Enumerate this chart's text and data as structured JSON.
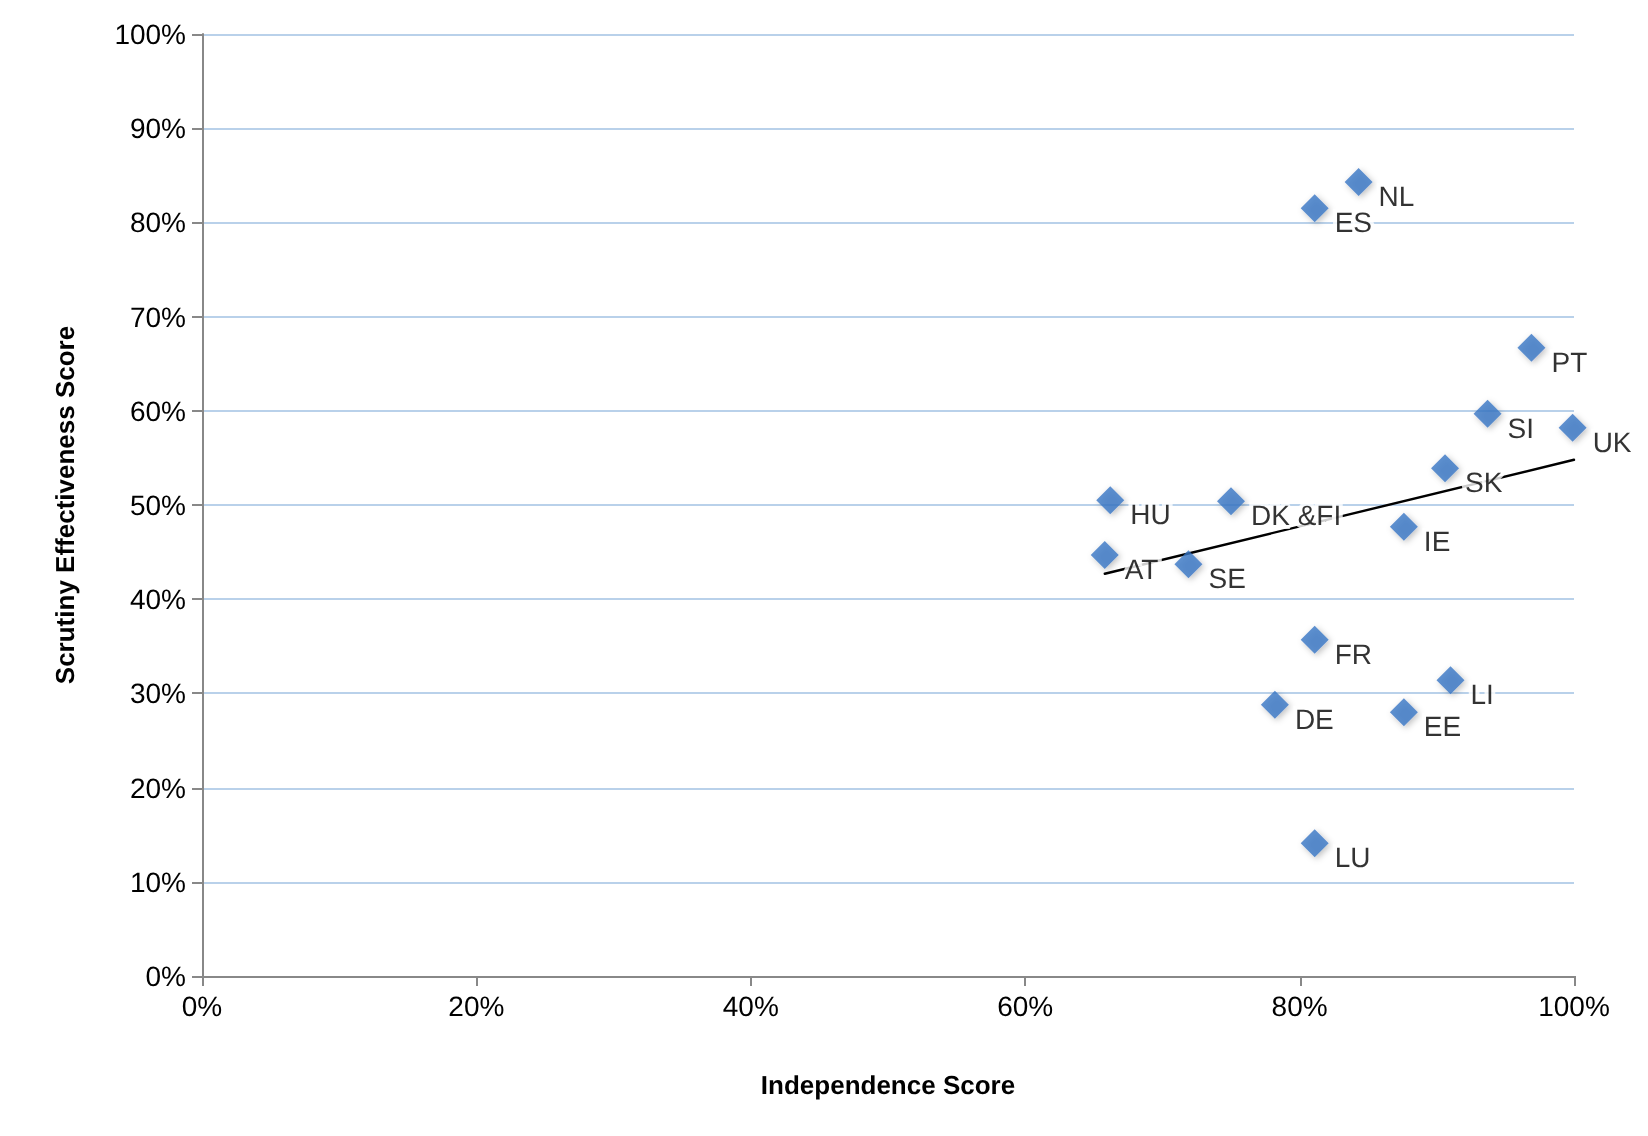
{
  "chart_data": {
    "type": "scatter",
    "xlabel": "Independence Score",
    "ylabel": "Scrutiny Effectiveness Score",
    "x": [
      84.3,
      81.1,
      96.9,
      93.7,
      99.9,
      90.6,
      66.2,
      75.0,
      65.8,
      71.9,
      87.6,
      81.1,
      91.0,
      78.2,
      87.6,
      81.1
    ],
    "series": [
      {
        "color": "#3a75c4",
        "values": [
          84.3,
          81.5,
          66.7,
          59.7,
          58.2,
          53.9,
          50.5,
          50.4,
          44.7,
          43.7,
          47.7,
          35.7,
          31.4,
          28.8,
          28.0,
          14.1
        ]
      },
      {
        "type": "line",
        "color": "#000000",
        "marker": "none",
        "x": [
          65.8,
          100
        ],
        "values": [
          42.7,
          54.8
        ]
      }
    ],
    "annotations": [
      {
        "text": "NL",
        "x": 84.3,
        "y": 84.3
      },
      {
        "text": "ES",
        "x": 81.1,
        "y": 81.5
      },
      {
        "text": "PT",
        "x": 96.9,
        "y": 66.7
      },
      {
        "text": "SI",
        "x": 93.7,
        "y": 59.7
      },
      {
        "text": "UK",
        "x": 99.9,
        "y": 58.2
      },
      {
        "text": "SK",
        "x": 90.6,
        "y": 53.9
      },
      {
        "text": "HU",
        "x": 66.2,
        "y": 50.5
      },
      {
        "text": "DK &FI",
        "x": 75.0,
        "y": 50.4
      },
      {
        "text": "AT",
        "x": 65.8,
        "y": 44.7
      },
      {
        "text": "SE",
        "x": 71.9,
        "y": 43.7
      },
      {
        "text": "IE",
        "x": 87.6,
        "y": 47.7
      },
      {
        "text": "FR",
        "x": 81.1,
        "y": 35.7
      },
      {
        "text": "LI",
        "x": 91.0,
        "y": 31.4
      },
      {
        "text": "DE",
        "x": 78.2,
        "y": 28.8
      },
      {
        "text": "EE",
        "x": 87.6,
        "y": 28.0
      },
      {
        "text": "LU",
        "x": 81.1,
        "y": 14.1
      }
    ],
    "marker": "diamond",
    "grid": "y",
    "xlim": [
      0,
      100
    ],
    "ylim": [
      0,
      100
    ],
    "xticks": [
      {
        "value": 0,
        "label": "0%"
      },
      {
        "value": 20,
        "label": "20%"
      },
      {
        "value": 40,
        "label": "40%"
      },
      {
        "value": 60,
        "label": "60%"
      },
      {
        "value": 80,
        "label": "80%"
      },
      {
        "value": 100,
        "label": "100%"
      }
    ],
    "yticks": [
      {
        "value": 0,
        "label": "0%"
      },
      {
        "value": 10,
        "label": "10%"
      },
      {
        "value": 20,
        "label": "20%"
      },
      {
        "value": 30,
        "label": "30%"
      },
      {
        "value": 40,
        "label": "40%"
      },
      {
        "value": 50,
        "label": "50%"
      },
      {
        "value": 60,
        "label": "60%"
      },
      {
        "value": 70,
        "label": "70%"
      },
      {
        "value": 80,
        "label": "80%"
      },
      {
        "value": 90,
        "label": "90%"
      },
      {
        "value": 100,
        "label": "100%"
      }
    ]
  }
}
